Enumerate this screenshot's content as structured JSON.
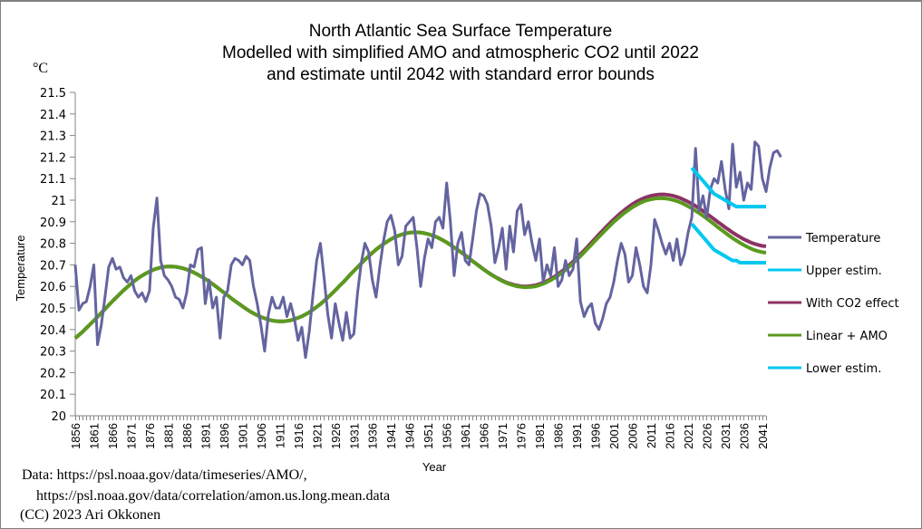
{
  "chart_data": {
    "type": "line",
    "title_lines": [
      "North Atlantic Sea Surface Temperature",
      "Modelled with simplified AMO and atmospheric CO2 until 2022",
      "and estimate until 2042 with standard error bounds"
    ],
    "unit_label": "°C",
    "ylabel": "Temperature",
    "xlabel": "Year",
    "ylim": [
      20,
      21.5
    ],
    "yticks": [
      "20",
      "20.1",
      "20.2",
      "20.3",
      "20.4",
      "20.5",
      "20.6",
      "20.7",
      "20.8",
      "20.9",
      "21",
      "21.1",
      "21.2",
      "21.3",
      "21.4",
      "21.5"
    ],
    "xlim": [
      1856,
      2042
    ],
    "xtick_labels": [
      "1856",
      "1861",
      "1866",
      "1871",
      "1876",
      "1881",
      "1886",
      "1891",
      "1896",
      "1901",
      "1906",
      "1911",
      "1916",
      "1921",
      "1926",
      "1931",
      "1936",
      "1941",
      "1946",
      "1951",
      "1956",
      "1961",
      "1966",
      "1971",
      "1976",
      "1981",
      "1986",
      "1991",
      "1996",
      "2001",
      "2006",
      "2011",
      "2016",
      "2021",
      "2026",
      "2031",
      "2036",
      "2041"
    ],
    "grid": false,
    "legend_position": "right",
    "series": [
      {
        "name": "Temperature",
        "color": "#6464a0",
        "x_start": 1856,
        "values": [
          20.7,
          20.49,
          20.52,
          20.53,
          20.6,
          20.7,
          20.33,
          20.42,
          20.55,
          20.69,
          20.73,
          20.68,
          20.69,
          20.64,
          20.62,
          20.65,
          20.58,
          20.55,
          20.57,
          20.53,
          20.58,
          20.87,
          21.01,
          20.72,
          20.65,
          20.63,
          20.6,
          20.55,
          20.54,
          20.5,
          20.57,
          20.7,
          20.69,
          20.77,
          20.78,
          20.52,
          20.63,
          20.5,
          20.55,
          20.36,
          20.55,
          20.58,
          20.7,
          20.73,
          20.72,
          20.7,
          20.74,
          20.72,
          20.6,
          20.52,
          20.42,
          20.3,
          20.47,
          20.55,
          20.5,
          20.5,
          20.55,
          20.46,
          20.52,
          20.45,
          20.35,
          20.41,
          20.27,
          20.39,
          20.56,
          20.72,
          20.8,
          20.64,
          20.47,
          20.36,
          20.52,
          20.43,
          20.35,
          20.48,
          20.36,
          20.38,
          20.57,
          20.71,
          20.8,
          20.76,
          20.63,
          20.55,
          20.69,
          20.81,
          20.9,
          20.93,
          20.86,
          20.7,
          20.74,
          20.88,
          20.9,
          20.92,
          20.78,
          20.6,
          20.73,
          20.82,
          20.78,
          20.9,
          20.92,
          20.87,
          21.08,
          20.9,
          20.65,
          20.8,
          20.85,
          20.72,
          20.7,
          20.82,
          20.95,
          21.03,
          21.02,
          20.98,
          20.88,
          20.71,
          20.78,
          20.87,
          20.68,
          20.88,
          20.76,
          20.95,
          20.98,
          20.84,
          20.9,
          20.8,
          20.72,
          20.82,
          20.62,
          20.7,
          20.65,
          20.78,
          20.6,
          20.63,
          20.72,
          20.65,
          20.68,
          20.82,
          20.53,
          20.46,
          20.5,
          20.52,
          20.43,
          20.4,
          20.45,
          20.52,
          20.55,
          20.62,
          20.72,
          20.8,
          20.75,
          20.62,
          20.65,
          20.78,
          20.7,
          20.6,
          20.57,
          20.7,
          20.91,
          20.86,
          20.8,
          20.75,
          20.8,
          20.72,
          20.82,
          20.7,
          20.75,
          20.85,
          20.92,
          21.24,
          20.95,
          21.02,
          20.92,
          21.05,
          21.1,
          21.08,
          21.18,
          21.05,
          20.96,
          21.26,
          21.06,
          21.13,
          21.0,
          21.08,
          21.05,
          21.27,
          21.25,
          21.1,
          21.04,
          21.15,
          21.22,
          21.23,
          21.2
        ]
      },
      {
        "name": "Upper estim.",
        "color": "#00c8f0",
        "x_start": 2022,
        "values": [
          21.15,
          21.13,
          21.11,
          21.09,
          21.07,
          21.05,
          21.03,
          21.02,
          21.01,
          21.0,
          20.99,
          20.98,
          20.97,
          20.97,
          20.97,
          20.97,
          20.97,
          20.97,
          20.97,
          20.97,
          20.97
        ]
      },
      {
        "name": "With CO2 effect",
        "color": "#8c3264",
        "x_start": 1856,
        "values": []
      },
      {
        "name": "Linear + AMO",
        "color": "#5a9a1e",
        "x_start": 1856,
        "values": []
      },
      {
        "name": "Lower estim.",
        "color": "#00c8f0",
        "x_start": 2022,
        "values": [
          20.89,
          20.87,
          20.85,
          20.83,
          20.81,
          20.79,
          20.77,
          20.76,
          20.75,
          20.74,
          20.73,
          20.72,
          20.72,
          20.71,
          20.71,
          20.71,
          20.71,
          20.71,
          20.71,
          20.71,
          20.71
        ]
      }
    ],
    "model": {
      "linear_amo": {
        "base_1856": 20.36,
        "trend_per_year": 0.0024,
        "amp": 0.165,
        "period_years": 66,
        "peak_year": 1880
      },
      "co2_extra_from": 1960,
      "co2_extra_2042": 0.03
    }
  },
  "source": {
    "line1": "Data: https://psl.noaa.gov/data/timeseries/AMO/,",
    "line2": "https://psl.noaa.gov/data/correlation/amon.us.long.mean.data",
    "line3": "(CC) 2023 Ari Okkonen"
  }
}
